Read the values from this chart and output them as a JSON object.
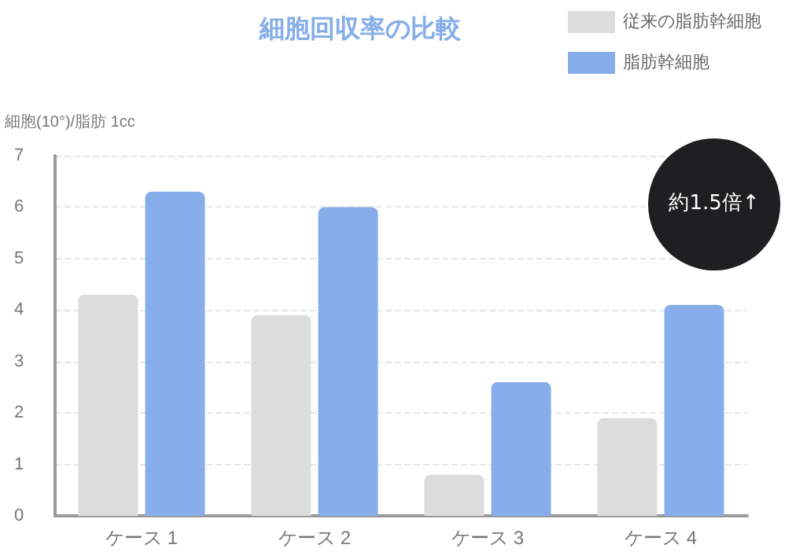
{
  "chart_data": {
    "type": "bar",
    "title": "細胞回収率の比較",
    "ylabel": "細胞(10°)/脂肪 1cc",
    "categories": [
      "ケース 1",
      "ケース 2",
      "ケース 3",
      "ケース 4"
    ],
    "series": [
      {
        "name": "従来の脂肪幹細胞",
        "color": "#dcdcdc",
        "values": [
          4.3,
          3.9,
          0.8,
          1.9
        ]
      },
      {
        "name": "脂肪幹細胞",
        "color": "#87adea",
        "values": [
          6.3,
          6.0,
          2.6,
          4.1
        ]
      }
    ],
    "ylim": [
      0,
      7
    ],
    "yticks": [
      0,
      1,
      2,
      3,
      4,
      5,
      6,
      7
    ],
    "grid": "y",
    "legend": "top right",
    "annotations": [
      "約1.5倍↑"
    ]
  }
}
